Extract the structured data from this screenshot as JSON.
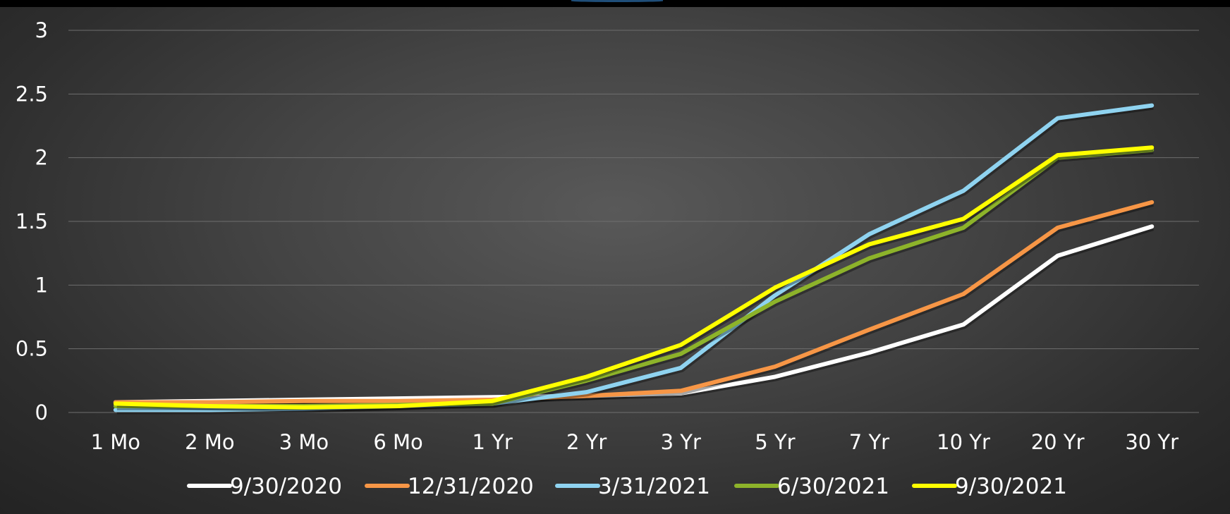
{
  "chart_data": {
    "type": "line",
    "title": "",
    "xlabel": "",
    "ylabel": "",
    "categories": [
      "1 Mo",
      "2 Mo",
      "3 Mo",
      "6 Mo",
      "1 Yr",
      "2 Yr",
      "3 Yr",
      "5 Yr",
      "7 Yr",
      "10 Yr",
      "20 Yr",
      "30 Yr"
    ],
    "ylim": [
      0,
      3
    ],
    "yticks": [
      "0",
      "0.5",
      "1",
      "1.5",
      "2",
      "2.5",
      "3"
    ],
    "grid": "horizontal",
    "legend_position": "bottom",
    "series": [
      {
        "name": "9/30/2020",
        "color": "#ffffff",
        "values": [
          0.08,
          0.09,
          0.1,
          0.11,
          0.12,
          0.13,
          0.15,
          0.28,
          0.47,
          0.69,
          1.23,
          1.46
        ]
      },
      {
        "name": "12/31/2020",
        "color": "#f79646",
        "values": [
          0.08,
          0.08,
          0.09,
          0.09,
          0.1,
          0.13,
          0.17,
          0.36,
          0.65,
          0.93,
          1.45,
          1.65
        ]
      },
      {
        "name": "3/31/2021",
        "color": "#8fd3f0",
        "values": [
          0.02,
          0.02,
          0.03,
          0.05,
          0.07,
          0.16,
          0.35,
          0.92,
          1.4,
          1.74,
          2.31,
          2.41
        ]
      },
      {
        "name": "6/30/2021",
        "color": "#8db32a",
        "values": [
          0.05,
          0.05,
          0.05,
          0.06,
          0.07,
          0.25,
          0.46,
          0.87,
          1.21,
          1.45,
          2.0,
          2.06
        ]
      },
      {
        "name": "9/30/2021",
        "color": "#ffff00",
        "values": [
          0.07,
          0.05,
          0.04,
          0.05,
          0.09,
          0.28,
          0.53,
          0.98,
          1.32,
          1.52,
          2.02,
          2.08
        ]
      }
    ]
  }
}
